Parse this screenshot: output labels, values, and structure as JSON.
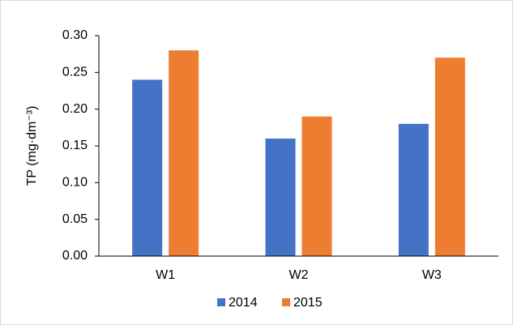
{
  "chart_data": {
    "type": "bar",
    "y_label": "TP (mg·dm⁻³)",
    "categories": [
      "W1",
      "W2",
      "W3"
    ],
    "series": [
      {
        "name": "2014",
        "color": "#4472c4",
        "values": [
          0.24,
          0.16,
          0.18
        ]
      },
      {
        "name": "2015",
        "color": "#ed7d31",
        "values": [
          0.28,
          0.19,
          0.27
        ]
      }
    ],
    "ylim": [
      0,
      0.3
    ],
    "yticks": [
      {
        "value": 0,
        "label": "0.00"
      },
      {
        "value": 0.05,
        "label": "0.05"
      },
      {
        "value": 0.1,
        "label": "0.10"
      },
      {
        "value": 0.15,
        "label": "0.15"
      },
      {
        "value": 0.2,
        "label": "0.20"
      },
      {
        "value": 0.25,
        "label": "0.25"
      },
      {
        "value": 0.3,
        "label": "0.30"
      }
    ],
    "grid": false,
    "legend": "bottom"
  }
}
